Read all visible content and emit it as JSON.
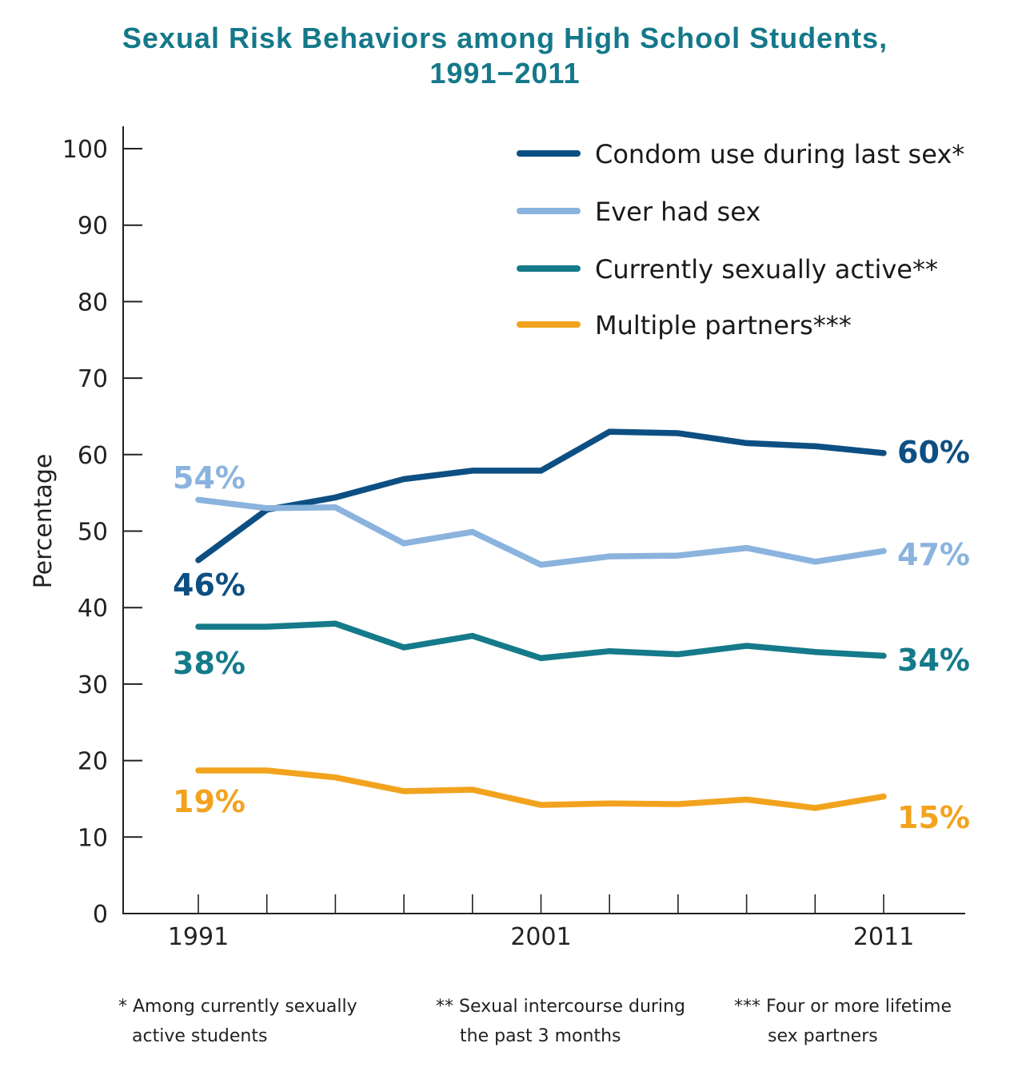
{
  "chart_data": {
    "type": "line",
    "title": "Sexual Risk Behaviors among High School Students, 1991−2011",
    "title_lines": [
      "Sexual Risk Behaviors among High School Students,",
      "1991−2011"
    ],
    "xlabel": "",
    "ylabel": "Percentage",
    "x": [
      1991,
      1993,
      1995,
      1997,
      1999,
      2001,
      2003,
      2005,
      2007,
      2009,
      2011
    ],
    "xticks_labeled": [
      1991,
      2001,
      2011
    ],
    "xlim": [
      1989,
      2013
    ],
    "ylim": [
      0,
      100
    ],
    "yticks": [
      0,
      10,
      20,
      30,
      40,
      50,
      60,
      70,
      80,
      90,
      100
    ],
    "grid": false,
    "legend_position": "top-right",
    "series": [
      {
        "name": "Condom use during last sex*",
        "color": "#0d4f82",
        "values": [
          46.2,
          52.8,
          54.4,
          56.8,
          57.9,
          57.9,
          63.0,
          62.8,
          61.5,
          61.1,
          60.2
        ],
        "start_label": "46%",
        "end_label": "60%"
      },
      {
        "name": "Ever had sex",
        "color": "#8ab3de",
        "values": [
          54.1,
          53.0,
          53.1,
          48.4,
          49.9,
          45.6,
          46.7,
          46.8,
          47.8,
          46.0,
          47.4
        ],
        "start_label": "54%",
        "end_label": "47%"
      },
      {
        "name": "Currently sexually active**",
        "color": "#157a8a",
        "values": [
          37.5,
          37.5,
          37.9,
          34.8,
          36.3,
          33.4,
          34.3,
          33.9,
          35.0,
          34.2,
          33.7
        ],
        "start_label": "38%",
        "end_label": "34%"
      },
      {
        "name": "Multiple partners***",
        "color": "#f2a31e",
        "values": [
          18.7,
          18.7,
          17.8,
          16.0,
          16.2,
          14.2,
          14.4,
          14.3,
          14.9,
          13.8,
          15.3
        ],
        "start_label": "19%",
        "end_label": "15%"
      }
    ],
    "footnotes": [
      {
        "mark": "*",
        "lines": [
          "Among currently sexually",
          "active students"
        ]
      },
      {
        "mark": "**",
        "lines": [
          "Sexual intercourse during",
          "the past 3 months"
        ]
      },
      {
        "mark": "***",
        "lines": [
          "Four or more lifetime",
          "sex partners"
        ]
      }
    ]
  }
}
